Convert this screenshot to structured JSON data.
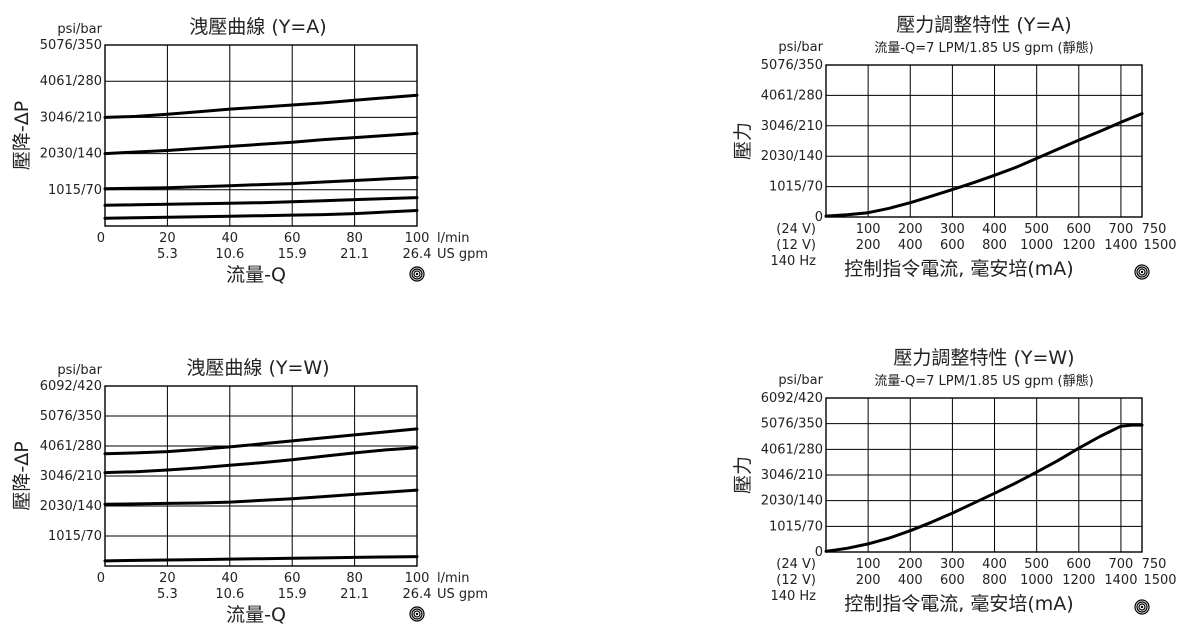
{
  "chart_data": [
    {
      "type": "line",
      "title": "洩壓曲線 (Y=A)",
      "unit_label": "psi/bar",
      "ylabel": "壓降-ΔP",
      "xlabel": "流量-Q",
      "x_unit_1": "l/min",
      "x_unit_2": "US gpm",
      "y_ticks": [
        "5076/350",
        "4061/280",
        "3046/210",
        "2030/140",
        "1015/70"
      ],
      "x_ticks": [
        "0",
        "20",
        "40",
        "60",
        "80",
        "100"
      ],
      "x_ticks_2": [
        "5.3",
        "10.6",
        "15.9",
        "21.1",
        "26.4"
      ],
      "icon": "hydraulic-symbol-icon",
      "xlim": [
        0,
        100
      ],
      "ylim": [
        0,
        350
      ],
      "series": [
        {
          "x": [
            0,
            10,
            20,
            30,
            40,
            50,
            60,
            70,
            80,
            90,
            100
          ],
          "values": [
            210,
            212,
            216,
            221,
            226,
            230,
            234,
            238,
            243,
            248,
            253
          ]
        },
        {
          "x": [
            0,
            10,
            20,
            30,
            40,
            50,
            60,
            70,
            80,
            90,
            100
          ],
          "values": [
            140,
            143,
            146,
            150,
            154,
            158,
            162,
            167,
            171,
            175,
            179
          ]
        },
        {
          "x": [
            0,
            10,
            20,
            30,
            40,
            50,
            60,
            70,
            80,
            90,
            100
          ],
          "values": [
            72,
            73,
            74,
            76,
            78,
            80,
            82,
            85,
            88,
            91,
            94
          ]
        },
        {
          "x": [
            0,
            10,
            20,
            30,
            40,
            50,
            60,
            70,
            80,
            90,
            100
          ],
          "values": [
            40,
            41,
            42,
            43,
            44,
            45,
            47,
            49,
            51,
            53,
            55
          ]
        },
        {
          "x": [
            0,
            10,
            20,
            30,
            40,
            50,
            60,
            70,
            80,
            90,
            100
          ],
          "values": [
            15,
            16,
            17,
            18,
            19,
            20,
            21,
            22,
            24,
            27,
            30
          ]
        }
      ]
    },
    {
      "type": "line",
      "title": "洩壓曲線 (Y=W)",
      "unit_label": "psi/bar",
      "ylabel": "壓降-ΔP",
      "xlabel": "流量-Q",
      "x_unit_1": "l/min",
      "x_unit_2": "US gpm",
      "y_ticks": [
        "6092/420",
        "5076/350",
        "4061/280",
        "3046/210",
        "2030/140",
        "1015/70"
      ],
      "x_ticks": [
        "0",
        "20",
        "40",
        "60",
        "80",
        "100"
      ],
      "x_ticks_2": [
        "5.3",
        "10.6",
        "15.9",
        "21.1",
        "26.4"
      ],
      "icon": "hydraulic-symbol-icon",
      "xlim": [
        0,
        100
      ],
      "ylim": [
        0,
        420
      ],
      "series": [
        {
          "x": [
            0,
            10,
            20,
            30,
            40,
            50,
            60,
            70,
            80,
            90,
            100
          ],
          "values": [
            262,
            264,
            267,
            272,
            278,
            285,
            292,
            299,
            306,
            313,
            320
          ]
        },
        {
          "x": [
            0,
            10,
            20,
            30,
            40,
            50,
            60,
            70,
            80,
            90,
            100
          ],
          "values": [
            218,
            220,
            224,
            229,
            235,
            241,
            248,
            256,
            264,
            271,
            276
          ]
        },
        {
          "x": [
            0,
            10,
            20,
            30,
            40,
            50,
            60,
            70,
            80,
            90,
            100
          ],
          "values": [
            144,
            145,
            146,
            147,
            149,
            153,
            157,
            162,
            167,
            172,
            177
          ]
        },
        {
          "x": [
            0,
            10,
            20,
            30,
            40,
            50,
            60,
            70,
            80,
            90,
            100
          ],
          "values": [
            12,
            13,
            14,
            15,
            16,
            17,
            18,
            19,
            20,
            21,
            22
          ]
        }
      ]
    },
    {
      "type": "line",
      "title": "壓力調整特性 (Y=A)",
      "subtitle": "流量-Q=7 LPM/1.85 US gpm (靜態)",
      "unit_label": "psi/bar",
      "ylabel": "壓力",
      "xlabel": "控制指令電流, 毫安培(mA)",
      "y_ticks": [
        "5076/350",
        "4061/280",
        "3046/210",
        "2030/140",
        "1015/70",
        "0"
      ],
      "x_row_labels": [
        "(24 V)",
        "(12 V)",
        "140 Hz"
      ],
      "x_ticks": [
        "100",
        "200",
        "300",
        "400",
        "500",
        "600",
        "700",
        "750"
      ],
      "x_ticks_2": [
        "200",
        "400",
        "600",
        "800",
        "1000",
        "1200",
        "1400",
        "1500"
      ],
      "icon": "hydraulic-symbol-icon",
      "xlim": [
        0,
        750
      ],
      "ylim": [
        0,
        350
      ],
      "series": [
        {
          "x": [
            0,
            50,
            100,
            150,
            200,
            250,
            300,
            350,
            400,
            450,
            500,
            550,
            600,
            650,
            700,
            750
          ],
          "values": [
            2,
            5,
            10,
            20,
            33,
            48,
            63,
            79,
            96,
            114,
            135,
            156,
            177,
            197,
            218,
            238
          ]
        }
      ]
    },
    {
      "type": "line",
      "title": "壓力調整特性 (Y=W)",
      "subtitle": "流量-Q=7 LPM/1.85 US gpm (靜態)",
      "unit_label": "psi/bar",
      "ylabel": "壓力",
      "xlabel": "控制指令電流, 毫安培(mA)",
      "y_ticks": [
        "6092/420",
        "5076/350",
        "4061/280",
        "3046/210",
        "2030/140",
        "1015/70",
        "0"
      ],
      "x_row_labels": [
        "(24 V)",
        "(12 V)",
        "140 Hz"
      ],
      "x_ticks": [
        "100",
        "200",
        "300",
        "400",
        "500",
        "600",
        "700",
        "750"
      ],
      "x_ticks_2": [
        "200",
        "400",
        "600",
        "800",
        "1000",
        "1200",
        "1400",
        "1500"
      ],
      "icon": "hydraulic-symbol-icon",
      "xlim": [
        0,
        750
      ],
      "ylim": [
        0,
        420
      ],
      "series": [
        {
          "x": [
            0,
            50,
            100,
            150,
            200,
            250,
            300,
            350,
            400,
            450,
            500,
            550,
            600,
            650,
            700,
            725,
            750
          ],
          "values": [
            2,
            10,
            22,
            38,
            58,
            81,
            106,
            133,
            160,
            188,
            218,
            249,
            283,
            315,
            343,
            346,
            346
          ]
        }
      ]
    }
  ]
}
